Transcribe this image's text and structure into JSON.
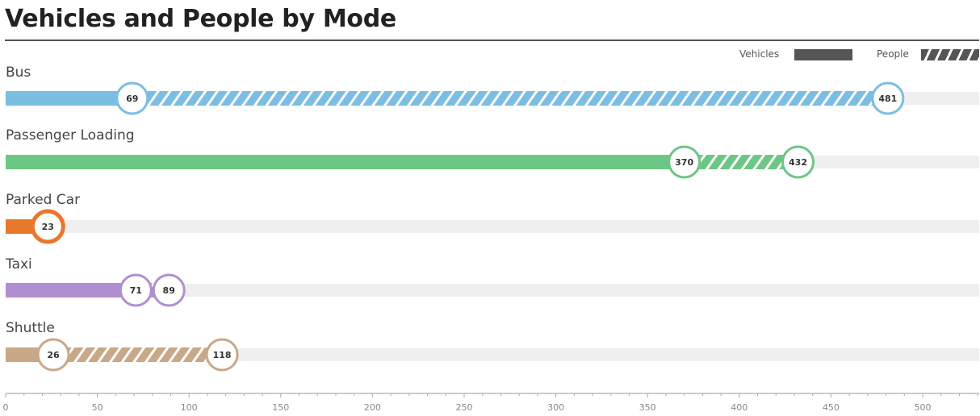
{
  "chart_data": {
    "type": "bar",
    "title": "Vehicles and People by Mode",
    "legend": {
      "vehicles_label": "Vehicles",
      "people_label": "People",
      "placement": "top-right"
    },
    "categories": [
      "Bus",
      "Passenger Loading",
      "Parked Car",
      "Taxi",
      "Shuttle"
    ],
    "series": [
      {
        "name": "Vehicles",
        "values": [
          69,
          370,
          23,
          71,
          26
        ]
      },
      {
        "name": "People",
        "values": [
          481,
          432,
          23,
          89,
          118
        ]
      }
    ],
    "colors": [
      "#7bbde3",
      "#6cc785",
      "#e8782b",
      "#b08fd1",
      "#c9a888"
    ],
    "xlim": [
      0,
      530
    ],
    "xticks": [
      0,
      50,
      100,
      150,
      200,
      250,
      300,
      350,
      400,
      450,
      500
    ],
    "xlabel": "",
    "ylabel": ""
  }
}
